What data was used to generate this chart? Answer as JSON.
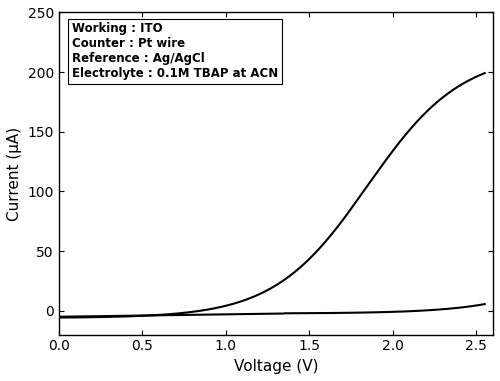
{
  "xlabel": "Voltage (V)",
  "ylabel": "Current (μA)",
  "xlim": [
    0.0,
    2.6
  ],
  "ylim": [
    -20,
    250
  ],
  "xticks": [
    0.0,
    0.5,
    1.0,
    1.5,
    2.0,
    2.5
  ],
  "yticks": [
    0,
    50,
    100,
    150,
    200,
    250
  ],
  "annotation": "Working : ITO\nCounter : Pt wire\nReference : Ag/AgCl\nElectrolyte : 0.1M TBAP at ACN",
  "line_color": "#000000",
  "line_width": 1.5,
  "background_color": "#ffffff",
  "figsize": [
    5.0,
    3.81
  ],
  "dpi": 100
}
